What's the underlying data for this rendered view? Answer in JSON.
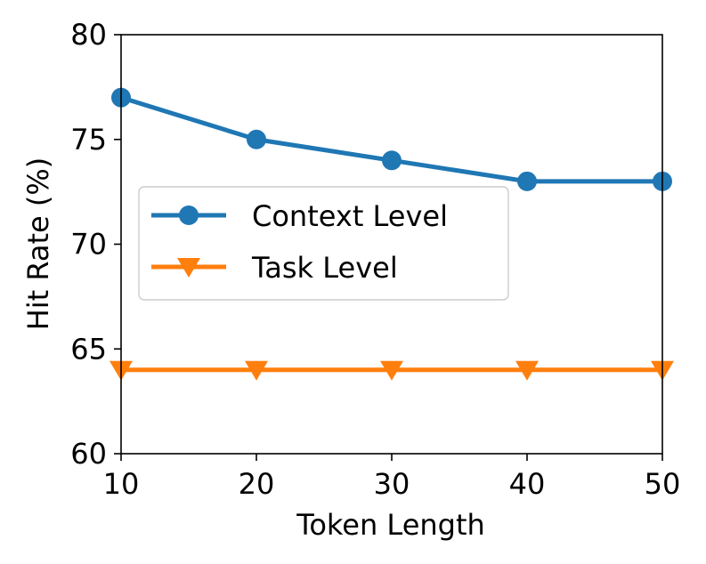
{
  "chart_data": {
    "type": "line",
    "x": [
      10,
      20,
      30,
      40,
      50
    ],
    "series": [
      {
        "name": "Context Level",
        "values": [
          77,
          75,
          74,
          73,
          73
        ],
        "color": "#1f77b4",
        "marker": "circle"
      },
      {
        "name": "Task Level",
        "values": [
          64,
          64,
          64,
          64,
          64
        ],
        "color": "#ff7f0e",
        "marker": "triangle-down"
      }
    ],
    "xlabel": "Token Length",
    "ylabel": "Hit Rate (%)",
    "xlim": [
      10,
      50
    ],
    "ylim": [
      60,
      80
    ],
    "xticks": [
      10,
      20,
      30,
      40,
      50
    ],
    "yticks": [
      60,
      65,
      70,
      75,
      80
    ],
    "grid": false,
    "legend_position": "center-left"
  }
}
